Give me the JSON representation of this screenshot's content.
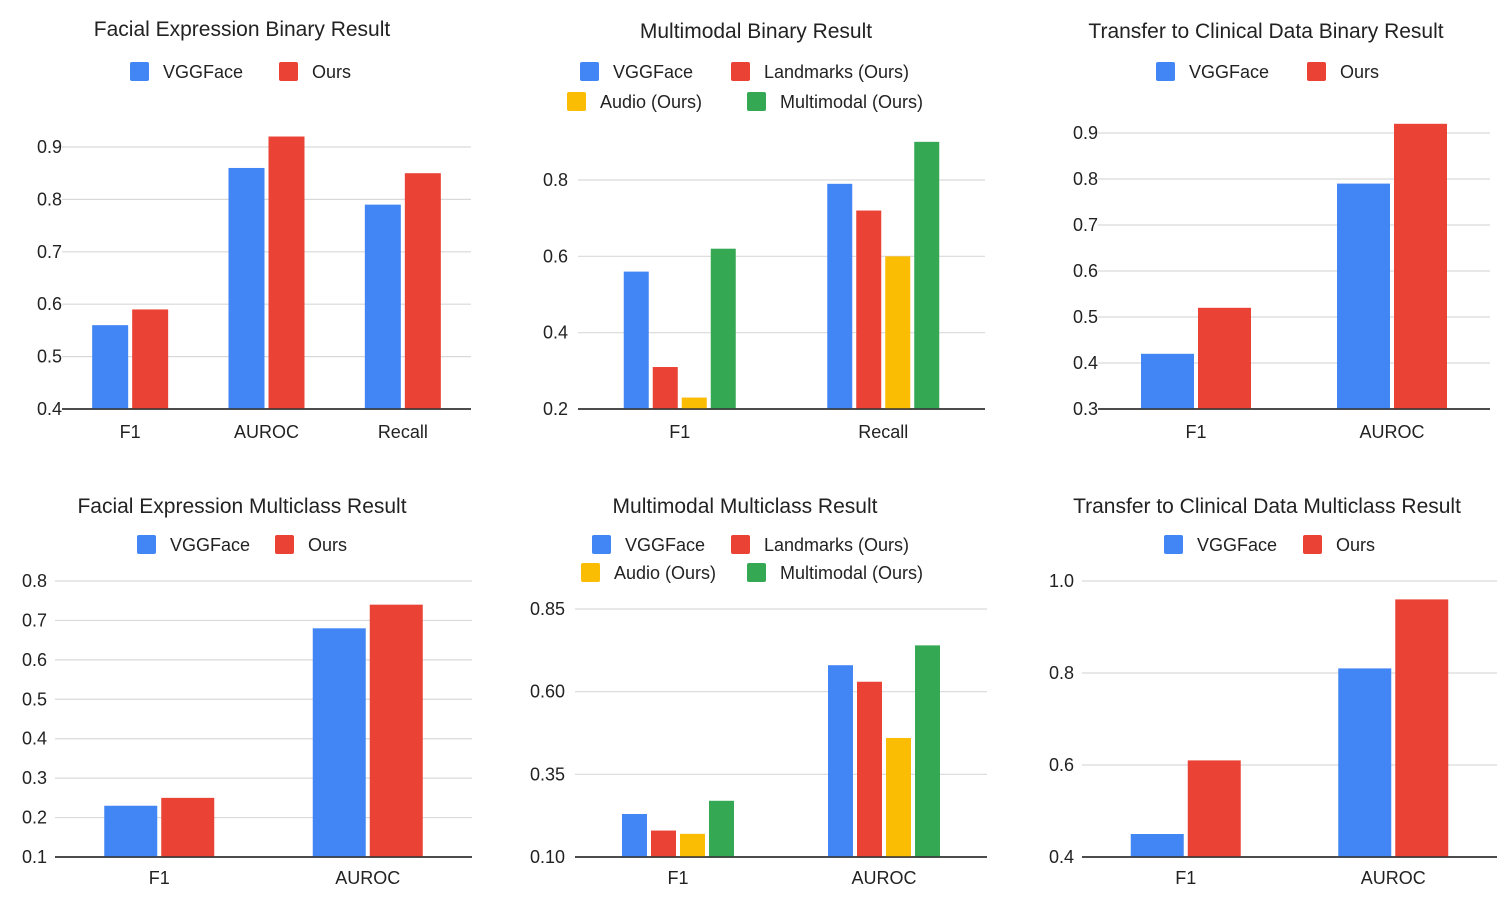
{
  "chart_data": [
    {
      "type": "bar",
      "title": "Facial Expression Binary Result",
      "categories": [
        "F1",
        "AUROC",
        "Recall"
      ],
      "series": [
        {
          "name": "VGGFace",
          "values": [
            0.56,
            0.86,
            0.79
          ]
        },
        {
          "name": "Ours",
          "values": [
            0.59,
            0.92,
            0.85
          ]
        }
      ],
      "ylim": [
        0.4,
        0.9
      ],
      "yticks": [
        "0.4",
        "0.5",
        "0.6",
        "0.7",
        "0.8",
        "0.9"
      ],
      "grid": true,
      "legend": "top"
    },
    {
      "type": "bar",
      "title": "Multimodal Binary Result",
      "categories": [
        "F1",
        "Recall"
      ],
      "series": [
        {
          "name": "VGGFace",
          "values": [
            0.56,
            0.79
          ]
        },
        {
          "name": "Landmarks (Ours)",
          "values": [
            0.31,
            0.72
          ]
        },
        {
          "name": "Audio (Ours)",
          "values": [
            0.23,
            0.6
          ]
        },
        {
          "name": "Multimodal (Ours)",
          "values": [
            0.62,
            0.9
          ]
        }
      ],
      "ylim": [
        0.2,
        0.8
      ],
      "yticks": [
        "0.2",
        "0.4",
        "0.6",
        "0.8"
      ],
      "grid": true,
      "legend": "top"
    },
    {
      "type": "bar",
      "title": "Transfer to Clinical Data Binary Result",
      "categories": [
        "F1",
        "AUROC"
      ],
      "series": [
        {
          "name": "VGGFace",
          "values": [
            0.42,
            0.79
          ]
        },
        {
          "name": "Ours",
          "values": [
            0.52,
            0.92
          ]
        }
      ],
      "ylim": [
        0.3,
        0.9
      ],
      "yticks": [
        "0.3",
        "0.4",
        "0.5",
        "0.6",
        "0.7",
        "0.8",
        "0.9"
      ],
      "grid": true,
      "legend": "top"
    },
    {
      "type": "bar",
      "title": "Facial Expression Multiclass Result",
      "categories": [
        "F1",
        "AUROC"
      ],
      "series": [
        {
          "name": "VGGFace",
          "values": [
            0.23,
            0.68
          ]
        },
        {
          "name": "Ours",
          "values": [
            0.25,
            0.74
          ]
        }
      ],
      "ylim": [
        0.1,
        0.8
      ],
      "yticks": [
        "0.1",
        "0.2",
        "0.3",
        "0.4",
        "0.5",
        "0.6",
        "0.7",
        "0.8"
      ],
      "grid": true,
      "legend": "top"
    },
    {
      "type": "bar",
      "title": "Multimodal Multiclass Result",
      "categories": [
        "F1",
        "AUROC"
      ],
      "series": [
        {
          "name": "VGGFace",
          "values": [
            0.23,
            0.68
          ]
        },
        {
          "name": "Landmarks (Ours)",
          "values": [
            0.18,
            0.63
          ]
        },
        {
          "name": "Audio (Ours)",
          "values": [
            0.17,
            0.46
          ]
        },
        {
          "name": "Multimodal (Ours)",
          "values": [
            0.27,
            0.74
          ]
        }
      ],
      "ylim": [
        0.1,
        0.85
      ],
      "yticks": [
        "0.10",
        "0.35",
        "0.60",
        "0.85"
      ],
      "grid": true,
      "legend": "top"
    },
    {
      "type": "bar",
      "title": "Transfer to Clinical Data Multiclass Result",
      "categories": [
        "F1",
        "AUROC"
      ],
      "series": [
        {
          "name": "VGGFace",
          "values": [
            0.45,
            0.81
          ]
        },
        {
          "name": "Ours",
          "values": [
            0.61,
            0.96
          ]
        }
      ],
      "ylim": [
        0.4,
        1.0
      ],
      "yticks": [
        "0.4",
        "0.6",
        "0.8",
        "1.0"
      ],
      "grid": true,
      "legend": "top"
    }
  ],
  "colors": {
    "VGGFace": "#4285f4",
    "Ours": "#ea4335",
    "Landmarks (Ours)": "#ea4335",
    "Audio (Ours)": "#fbbc04",
    "Multimodal (Ours)": "#34a853",
    "grid": "#d9d9d9",
    "axis": "#333333"
  }
}
